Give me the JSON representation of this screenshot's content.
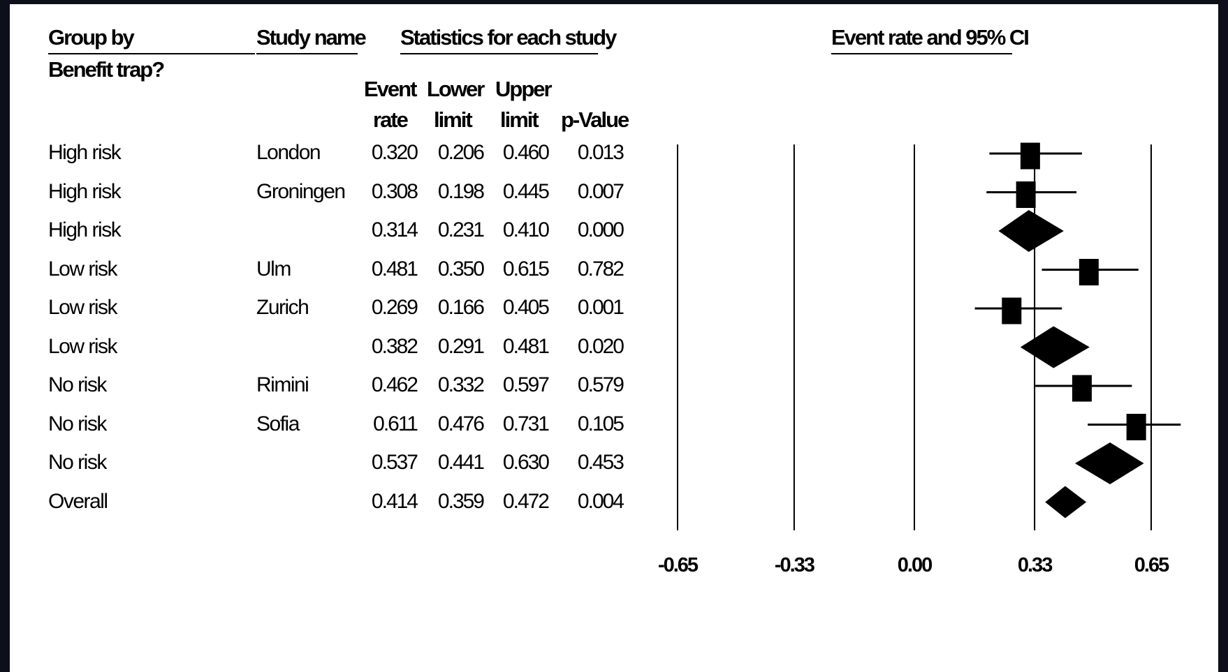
{
  "chart_data": {
    "type": "forest",
    "headers": {
      "group_by_line1": "Group by",
      "group_by_line2": "Benefit trap?",
      "study_name": "Study name",
      "statistics": "Statistics for each study",
      "plot_title": "Event rate and 95% CI",
      "event_rate_1": "Event",
      "event_rate_2": "rate",
      "lower_limit_1": "Lower",
      "lower_limit_2": "limit",
      "upper_limit_1": "Upper",
      "upper_limit_2": "limit",
      "p_value": "p-Value"
    },
    "rows": [
      {
        "group": "High risk",
        "study": "London",
        "event_rate": "0.320",
        "lower": "0.206",
        "upper": "0.460",
        "p": "0.013",
        "marker": "square"
      },
      {
        "group": "High risk",
        "study": "Groningen",
        "event_rate": "0.308",
        "lower": "0.198",
        "upper": "0.445",
        "p": "0.007",
        "marker": "square"
      },
      {
        "group": "High risk",
        "study": "",
        "event_rate": "0.314",
        "lower": "0.231",
        "upper": "0.410",
        "p": "0.000",
        "marker": "diamond"
      },
      {
        "group": "Low risk",
        "study": "Ulm",
        "event_rate": "0.481",
        "lower": "0.350",
        "upper": "0.615",
        "p": "0.782",
        "marker": "square"
      },
      {
        "group": "Low risk",
        "study": "Zurich",
        "event_rate": "0.269",
        "lower": "0.166",
        "upper": "0.405",
        "p": "0.001",
        "marker": "square"
      },
      {
        "group": "Low risk",
        "study": "",
        "event_rate": "0.382",
        "lower": "0.291",
        "upper": "0.481",
        "p": "0.020",
        "marker": "diamond"
      },
      {
        "group": "No risk",
        "study": "Rimini",
        "event_rate": "0.462",
        "lower": "0.332",
        "upper": "0.597",
        "p": "0.579",
        "marker": "square"
      },
      {
        "group": "No risk",
        "study": "Sofia",
        "event_rate": "0.611",
        "lower": "0.476",
        "upper": "0.731",
        "p": "0.105",
        "marker": "square"
      },
      {
        "group": "No risk",
        "study": "",
        "event_rate": "0.537",
        "lower": "0.441",
        "upper": "0.630",
        "p": "0.453",
        "marker": "diamond"
      },
      {
        "group": "Overall",
        "study": "",
        "event_rate": "0.414",
        "lower": "0.359",
        "upper": "0.472",
        "p": "0.004",
        "marker": "diamond"
      }
    ],
    "x_ticks": [
      "-0.65",
      "-0.33",
      "0.00",
      "0.33",
      "0.65"
    ],
    "x_tick_values": [
      -0.65,
      -0.33,
      0,
      0.33,
      0.65
    ],
    "xlim": [
      -0.65,
      0.65
    ],
    "grid": true
  }
}
